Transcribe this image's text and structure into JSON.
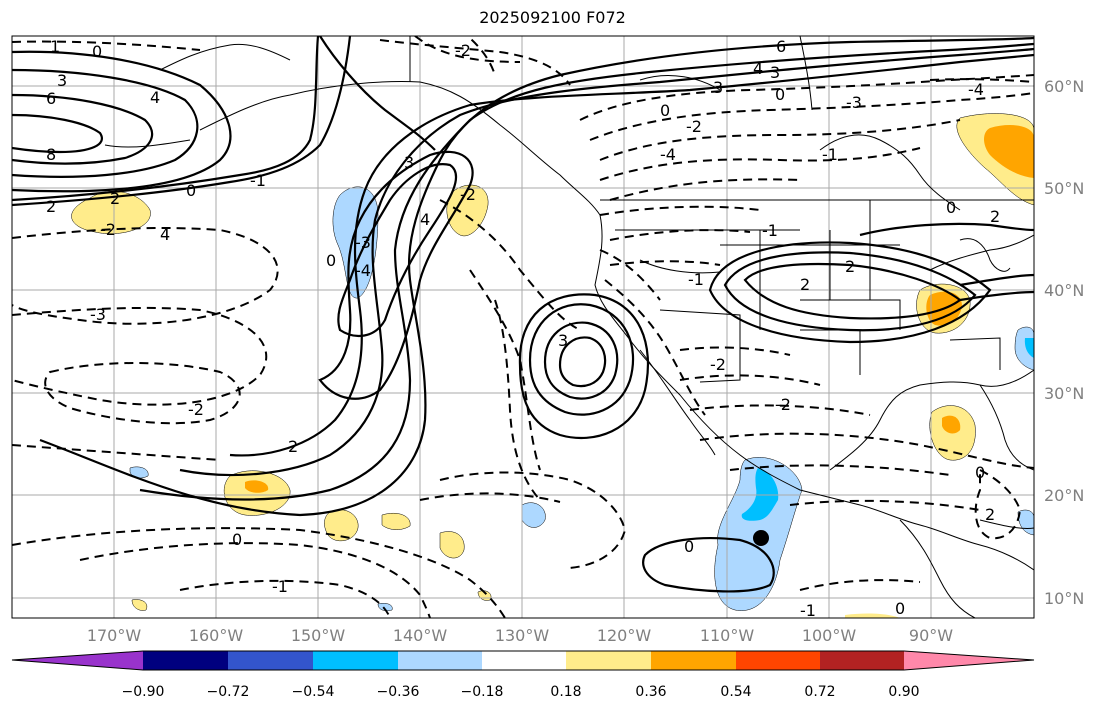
{
  "title": "2025092100 F072",
  "lat_labels": [
    "60°N",
    "50°N",
    "40°N",
    "30°N",
    "20°N",
    "10°N"
  ],
  "lon_labels": [
    "170°W",
    "160°W",
    "150°W",
    "140°W",
    "130°W",
    "120°W",
    "110°W",
    "100°W",
    "90°W"
  ],
  "colorbar": {
    "colors": [
      "#9933cc",
      "#00007f",
      "#3355cc",
      "#00bfff",
      "#add8ff",
      "#ffffff",
      "#ffec8b",
      "#ffa500",
      "#ff4500",
      "#b22222",
      "#ff88aa"
    ],
    "tick_labels": [
      "−0.90",
      "−0.72",
      "−0.54",
      "−0.36",
      "−0.18",
      "0.18",
      "0.36",
      "0.54",
      "0.72",
      "0.90"
    ]
  },
  "contour_labels": [
    "1",
    "0",
    "3",
    "6",
    "8",
    "2",
    "2",
    "4",
    "4",
    "-2",
    "-1",
    "0",
    "-3",
    "-2",
    "2",
    "0",
    "-1",
    "3",
    "4",
    "0",
    "3",
    "-2",
    "-2",
    "-3",
    "-4",
    "-4",
    "-1",
    "2",
    "2",
    "3",
    "0",
    "-2",
    "-1",
    "6",
    "4",
    "3",
    "0",
    "-3",
    "-4",
    "0",
    "2",
    "-2",
    "-2",
    "0",
    "-1",
    "0",
    "2",
    "-1",
    "0"
  ],
  "marker": "storm-center"
}
